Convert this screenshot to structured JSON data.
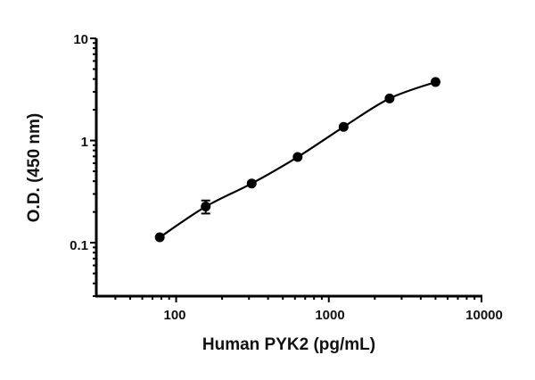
{
  "chart_data": {
    "type": "scatter",
    "xlabel": "Human PYK2 (pg/mL)",
    "ylabel": "O.D. (450 nm)",
    "xscale": "log",
    "yscale": "log",
    "xlim": [
      30,
      10000
    ],
    "ylim": [
      0.03,
      10
    ],
    "xticks": [
      100,
      1000,
      10000
    ],
    "xtick_labels": [
      "100",
      "1000",
      "10000"
    ],
    "yticks": [
      0.1,
      1,
      10
    ],
    "ytick_labels": [
      "0.1",
      "1",
      "10"
    ],
    "grid": false,
    "legend": "none",
    "fit_line": true,
    "color": "#000000",
    "series": [
      {
        "x": [
          78.125,
          156.25,
          312.5,
          625,
          1250,
          2500,
          5000
        ],
        "y": [
          0.113,
          0.226,
          0.38,
          0.69,
          1.36,
          2.58,
          3.74
        ],
        "yerr": [
          0,
          0.033,
          0,
          0,
          0,
          0,
          0
        ]
      }
    ]
  }
}
